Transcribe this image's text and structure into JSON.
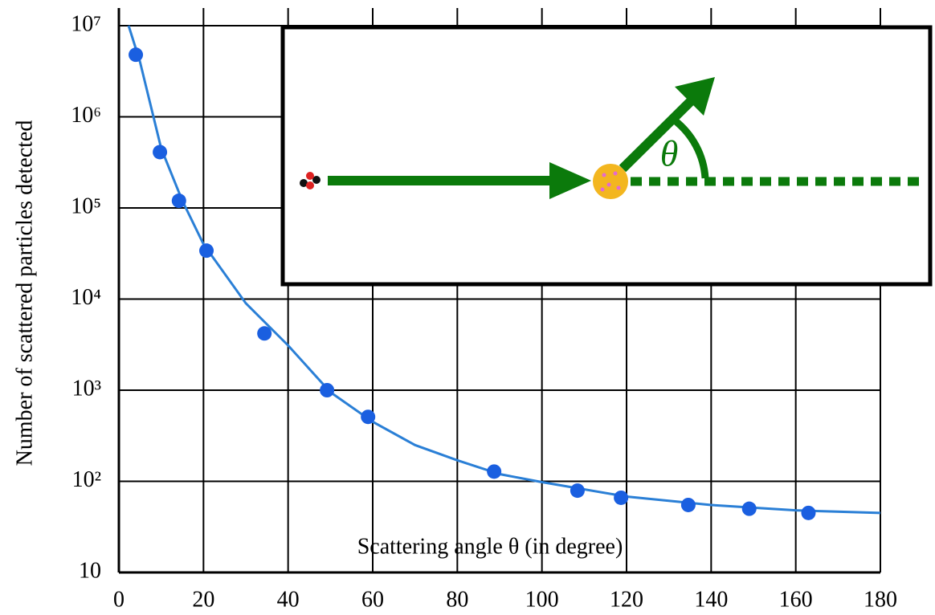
{
  "chart_data": {
    "type": "scatter",
    "x_label": "Scattering angle  θ (in degree)",
    "y_label": "Number of  scattered particles detected",
    "annotation": "θ",
    "xlim": [
      0,
      180
    ],
    "xticks": [
      0,
      20,
      40,
      60,
      80,
      100,
      120,
      140,
      160,
      180
    ],
    "ylim": [
      10,
      10000000
    ],
    "yscale": "log",
    "yticks": [
      10,
      {
        "value": 100,
        "label": "10²"
      },
      {
        "value": 1000,
        "label": "10³"
      },
      {
        "value": 10000,
        "label": "10⁴"
      },
      {
        "value": 100000,
        "label": "10⁵"
      },
      {
        "value": 1000000,
        "label": "10⁶"
      },
      {
        "value": 10000000,
        "label": "10⁷"
      }
    ],
    "grid": true,
    "series": [
      {
        "mode": "markers",
        "color": "#1a5fe0",
        "x": [
          4,
          9.7,
          14.2,
          20.7,
          34.4,
          49.2,
          58.9,
          88.7,
          108.4,
          118.7,
          134.6,
          149,
          163
        ],
        "values": [
          4800000,
          410000,
          120000,
          34000,
          4200,
          1000,
          510,
          128,
          79,
          66,
          55,
          50,
          45
        ]
      },
      {
        "mode": "line",
        "color": "#2a7fd6",
        "x": [
          2.3,
          5,
          10,
          15,
          20,
          30,
          40,
          50,
          60,
          70,
          80,
          90,
          100,
          120,
          140,
          160,
          180
        ],
        "values": [
          10000000,
          4000000,
          450000,
          120000,
          40000,
          9000,
          3100,
          950,
          450,
          250,
          170,
          120,
          98,
          68,
          55,
          48,
          45
        ]
      }
    ]
  }
}
